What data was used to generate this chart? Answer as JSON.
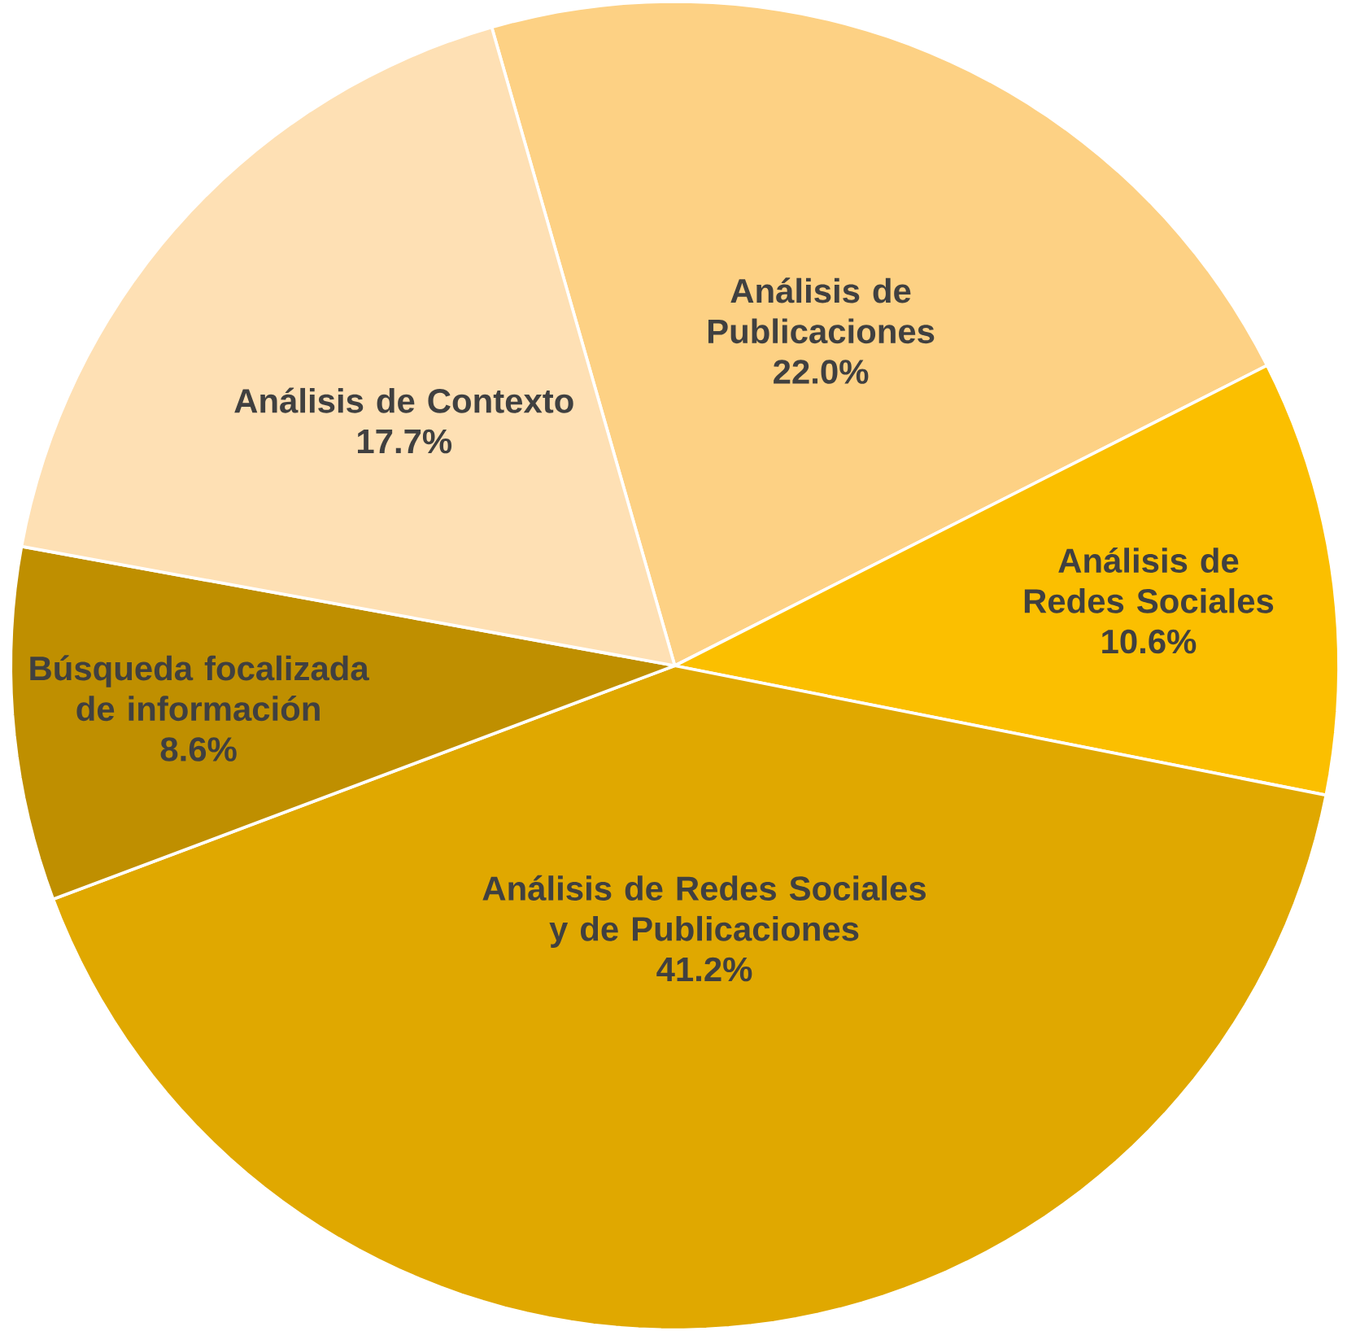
{
  "chart_data": {
    "type": "pie",
    "categories": [
      "Análisis de Publicaciones",
      "Análisis de Redes Sociales",
      "Análisis de Redes Sociales y de Publicaciones",
      "Búsqueda focalizada de información",
      "Análisis de Contexto"
    ],
    "values": [
      22.0,
      10.6,
      41.2,
      8.6,
      17.7
    ],
    "colors": [
      "#fdd184",
      "#fbbf00",
      "#e0a800",
      "#bf8f00",
      "#fee0b4"
    ],
    "value_labels": [
      "22.0%",
      "10.6%",
      "41.2%",
      "8.6%",
      "17.7%"
    ]
  }
}
